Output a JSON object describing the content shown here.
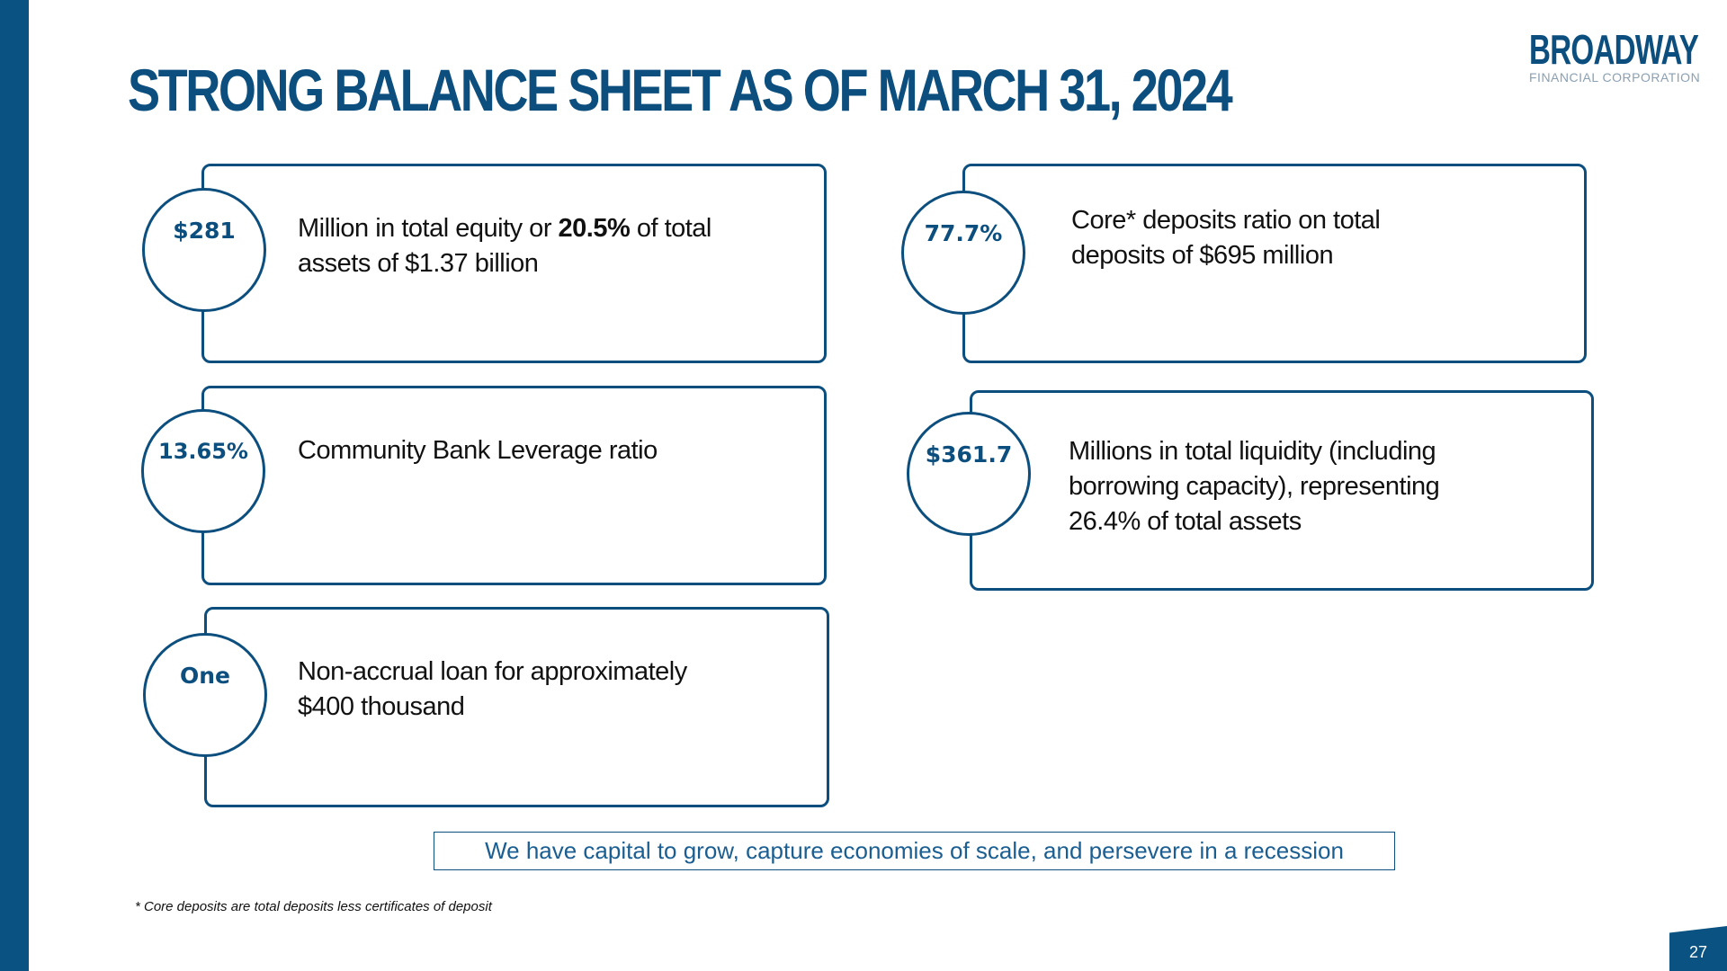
{
  "title": "STRONG BALANCE SHEET AS OF MARCH 31, 2024",
  "logo": {
    "name": "BROADWAY",
    "subtitle": "FINANCIAL CORPORATION"
  },
  "cards": [
    {
      "value": "$281",
      "text_before": "Million in total equity or ",
      "text_bold": "20.5%",
      "text_after": " of total assets of $1.37 billion"
    },
    {
      "value": "77.7%",
      "text": "Core* deposits ratio on total deposits of $695 million"
    },
    {
      "value": "13.65%",
      "text": "Community Bank Leverage ratio"
    },
    {
      "value": "$361.7",
      "text": "Millions in total liquidity (including borrowing capacity), representing 26.4% of total assets"
    },
    {
      "value": "One",
      "text": "Non-accrual loan for approximately $400 thousand"
    }
  ],
  "tagline": "We have capital to grow, capture economies of scale, and persevere in a recession",
  "footnote": "*  Core deposits are total deposits less certificates of deposit",
  "page_number": "27",
  "colors": {
    "brand_blue": "#0c4f7e",
    "sidebar_blue": "#0a5282",
    "tagline_text": "#1a5e92"
  }
}
